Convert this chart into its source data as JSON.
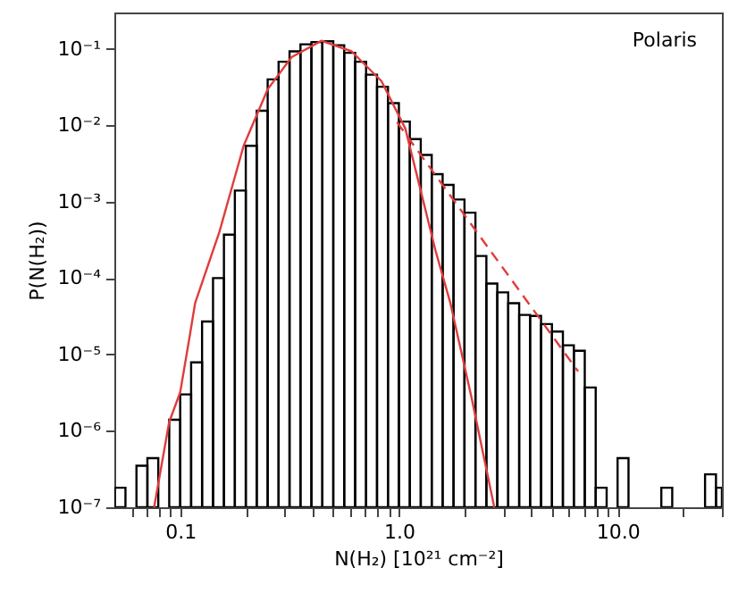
{
  "chart_data": {
    "type": "histogram",
    "xlabel": "N(H₂)  [10²¹ cm⁻²]",
    "ylabel": "P(N(H₂))",
    "annotations": [
      "Polaris"
    ],
    "log": "xy",
    "grid": false,
    "marker": "none",
    "xlim": [
      0.05,
      30
    ],
    "ylim": [
      1e-07,
      0.3
    ],
    "xticks": [
      {
        "value": 0.06,
        "label": null
      },
      {
        "value": 0.07,
        "label": null
      },
      {
        "value": 0.08,
        "label": null
      },
      {
        "value": 0.09,
        "label": null
      },
      0.1,
      {
        "value": 0.2,
        "label": null
      },
      {
        "value": 0.3,
        "label": null
      },
      {
        "value": 0.4,
        "label": null
      },
      {
        "value": 0.5,
        "label": null
      },
      {
        "value": 0.6,
        "label": null
      },
      {
        "value": 0.7,
        "label": null
      },
      {
        "value": 0.8,
        "label": null
      },
      {
        "value": 0.9,
        "label": null
      },
      {
        "value": 1,
        "label": "1.0"
      },
      {
        "value": 2,
        "label": null
      },
      {
        "value": 3,
        "label": null
      },
      {
        "value": 4,
        "label": null
      },
      {
        "value": 5,
        "label": null
      },
      {
        "value": 6,
        "label": null
      },
      {
        "value": 7,
        "label": null
      },
      {
        "value": 8,
        "label": null
      },
      {
        "value": 9,
        "label": null
      },
      {
        "value": 10,
        "label": "10.0"
      },
      {
        "value": 20,
        "label": null
      },
      {
        "value": 30,
        "label": null
      }
    ],
    "yticks": [
      {
        "value": 1e-07,
        "label": "10⁻⁷"
      },
      {
        "value": 1e-06,
        "label": "10⁻⁶"
      },
      {
        "value": 1e-05,
        "label": "10⁻⁵"
      },
      {
        "value": 0.0001,
        "label": "10⁻⁴"
      },
      {
        "value": 0.001,
        "label": "10⁻³"
      },
      {
        "value": 0.01,
        "label": "10⁻²"
      },
      {
        "value": 0.1,
        "label": "10⁻¹"
      }
    ],
    "series": [
      {
        "color": "#000000",
        "bins": [
          0.0501,
          0.0562,
          0.0631,
          0.0708,
          0.0794,
          0.0891,
          0.1,
          0.1122,
          0.1259,
          0.1413,
          0.1585,
          0.1778,
          0.1995,
          0.2239,
          0.2512,
          0.2818,
          0.3162,
          0.3548,
          0.3981,
          0.4467,
          0.5012,
          0.5623,
          0.631,
          0.7079,
          0.7943,
          0.8913,
          1.0,
          1.122,
          1.259,
          1.413,
          1.585,
          1.778,
          1.995,
          2.239,
          2.512,
          2.818,
          3.162,
          3.548,
          3.981,
          4.467,
          5.012,
          5.623,
          6.31,
          7.079,
          7.943,
          8.913,
          10,
          11.22,
          15.85,
          17.78,
          25.12,
          28.18,
          30
        ],
        "values": [
          1.8e-07,
          null,
          3.5e-07,
          4.4e-07,
          null,
          1.4e-06,
          3e-06,
          7.9e-06,
          2.7e-05,
          0.0001,
          0.00037,
          0.0014,
          0.0054,
          0.0155,
          0.04,
          0.068,
          0.093,
          0.115,
          0.123,
          0.126,
          0.112,
          0.089,
          0.068,
          0.046,
          0.032,
          0.0195,
          0.0112,
          0.0066,
          0.0041,
          0.0023,
          0.00166,
          0.00107,
          0.00072,
          0.000195,
          8.5e-05,
          6.5e-05,
          4.7e-05,
          3.3e-05,
          3.2e-05,
          2.5e-05,
          2e-05,
          1.32e-05,
          1.12e-05,
          3.7e-06,
          1.8e-07,
          null,
          4.4e-07,
          null,
          1.8e-07,
          null,
          2.7e-07,
          1.8e-07
        ]
      },
      {
        "type": "line",
        "color": "#e03c3c",
        "line_style": "solid",
        "x": [
          0.076,
          0.089,
          0.1,
          0.11,
          0.117,
          0.151,
          0.195,
          0.251,
          0.323,
          0.443,
          0.608,
          0.832,
          1.07,
          1.22,
          1.47,
          1.72,
          2.15,
          2.73
        ],
        "values": [
          1e-07,
          1.3e-06,
          3.2e-06,
          1.6e-05,
          4.7e-05,
          0.0004,
          0.0054,
          0.0295,
          0.078,
          0.128,
          0.093,
          0.038,
          0.0091,
          0.002,
          0.00023,
          4.7e-05,
          2.7e-06,
          1e-07
        ]
      },
      {
        "type": "line",
        "color": "#e03c3c",
        "line_style": "dashed",
        "x": [
          0.98,
          6.6
        ],
        "values": [
          0.011,
          6e-06
        ]
      }
    ]
  }
}
